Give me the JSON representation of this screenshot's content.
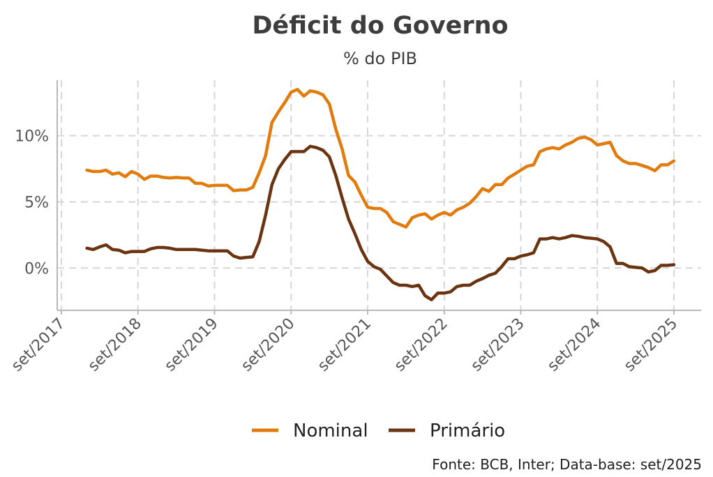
{
  "chart_data": {
    "type": "line",
    "title": "Déficit do Governo",
    "subtitle": "% do PIB",
    "caption": "Fonte: BCB, Inter; Data-base: set/2025",
    "x_ticks": [
      "set/2017",
      "set/2018",
      "set/2019",
      "set/2020",
      "set/2021",
      "set/2022",
      "set/2023",
      "set/2024",
      "set/2025"
    ],
    "y_ticks": [
      "0%",
      "5%",
      "10%"
    ],
    "y_tick_values": [
      0,
      5,
      10
    ],
    "xlim": [
      "2017-09",
      "2025-09"
    ],
    "ylim": [
      -3.2,
      14.2
    ],
    "grid": true,
    "legend_position": "bottom",
    "colors": {
      "Nominal": "#E07B0C",
      "Primário": "#6B3410"
    },
    "series": [
      {
        "name": "Nominal",
        "points": [
          [
            "2018-01",
            7.4
          ],
          [
            "2018-02",
            7.3
          ],
          [
            "2018-03",
            7.3
          ],
          [
            "2018-04",
            7.4
          ],
          [
            "2018-05",
            7.1
          ],
          [
            "2018-06",
            7.2
          ],
          [
            "2018-07",
            6.9
          ],
          [
            "2018-08",
            7.3
          ],
          [
            "2018-09",
            7.1
          ],
          [
            "2018-10",
            6.7
          ],
          [
            "2018-11",
            6.95
          ],
          [
            "2018-12",
            6.95
          ],
          [
            "2019-01",
            6.85
          ],
          [
            "2019-02",
            6.8
          ],
          [
            "2019-03",
            6.85
          ],
          [
            "2019-04",
            6.8
          ],
          [
            "2019-05",
            6.8
          ],
          [
            "2019-06",
            6.4
          ],
          [
            "2019-07",
            6.4
          ],
          [
            "2019-08",
            6.2
          ],
          [
            "2019-09",
            6.25
          ],
          [
            "2019-10",
            6.25
          ],
          [
            "2019-11",
            6.25
          ],
          [
            "2019-12",
            5.85
          ],
          [
            "2020-01",
            5.9
          ],
          [
            "2020-02",
            5.9
          ],
          [
            "2020-03",
            6.1
          ],
          [
            "2020-04",
            7.2
          ],
          [
            "2020-05",
            8.5
          ],
          [
            "2020-06",
            11.0
          ],
          [
            "2020-07",
            11.8
          ],
          [
            "2020-08",
            12.5
          ],
          [
            "2020-09",
            13.3
          ],
          [
            "2020-10",
            13.5
          ],
          [
            "2020-11",
            13.0
          ],
          [
            "2020-12",
            13.4
          ],
          [
            "2021-01",
            13.3
          ],
          [
            "2021-02",
            13.1
          ],
          [
            "2021-03",
            12.4
          ],
          [
            "2021-04",
            10.5
          ],
          [
            "2021-05",
            9.0
          ],
          [
            "2021-06",
            7.0
          ],
          [
            "2021-07",
            6.5
          ],
          [
            "2021-08",
            5.5
          ],
          [
            "2021-09",
            4.6
          ],
          [
            "2021-10",
            4.5
          ],
          [
            "2021-11",
            4.5
          ],
          [
            "2021-12",
            4.2
          ],
          [
            "2022-01",
            3.5
          ],
          [
            "2022-02",
            3.3
          ],
          [
            "2022-03",
            3.1
          ],
          [
            "2022-04",
            3.8
          ],
          [
            "2022-05",
            4.0
          ],
          [
            "2022-06",
            4.1
          ],
          [
            "2022-07",
            3.7
          ],
          [
            "2022-08",
            4.0
          ],
          [
            "2022-09",
            4.2
          ],
          [
            "2022-10",
            4.0
          ],
          [
            "2022-11",
            4.4
          ],
          [
            "2022-12",
            4.6
          ],
          [
            "2023-01",
            4.9
          ],
          [
            "2023-02",
            5.4
          ],
          [
            "2023-03",
            6.0
          ],
          [
            "2023-04",
            5.8
          ],
          [
            "2023-05",
            6.3
          ],
          [
            "2023-06",
            6.3
          ],
          [
            "2023-07",
            6.8
          ],
          [
            "2023-08",
            7.1
          ],
          [
            "2023-09",
            7.4
          ],
          [
            "2023-10",
            7.7
          ],
          [
            "2023-11",
            7.8
          ],
          [
            "2023-12",
            8.8
          ],
          [
            "2024-01",
            9.0
          ],
          [
            "2024-02",
            9.1
          ],
          [
            "2024-03",
            9.0
          ],
          [
            "2024-04",
            9.3
          ],
          [
            "2024-05",
            9.5
          ],
          [
            "2024-06",
            9.8
          ],
          [
            "2024-07",
            9.9
          ],
          [
            "2024-08",
            9.7
          ],
          [
            "2024-09",
            9.3
          ],
          [
            "2024-10",
            9.4
          ],
          [
            "2024-11",
            9.5
          ],
          [
            "2024-12",
            8.5
          ],
          [
            "2025-01",
            8.1
          ],
          [
            "2025-02",
            7.9
          ],
          [
            "2025-03",
            7.9
          ],
          [
            "2025-04",
            7.75
          ],
          [
            "2025-05",
            7.6
          ],
          [
            "2025-06",
            7.35
          ],
          [
            "2025-07",
            7.8
          ],
          [
            "2025-08",
            7.8
          ],
          [
            "2025-09",
            8.1
          ]
        ]
      },
      {
        "name": "Primário",
        "points": [
          [
            "2018-01",
            1.5
          ],
          [
            "2018-02",
            1.4
          ],
          [
            "2018-03",
            1.6
          ],
          [
            "2018-04",
            1.75
          ],
          [
            "2018-05",
            1.4
          ],
          [
            "2018-06",
            1.35
          ],
          [
            "2018-07",
            1.15
          ],
          [
            "2018-08",
            1.25
          ],
          [
            "2018-09",
            1.25
          ],
          [
            "2018-10",
            1.25
          ],
          [
            "2018-11",
            1.45
          ],
          [
            "2018-12",
            1.55
          ],
          [
            "2019-01",
            1.55
          ],
          [
            "2019-02",
            1.5
          ],
          [
            "2019-03",
            1.4
          ],
          [
            "2019-04",
            1.4
          ],
          [
            "2019-05",
            1.4
          ],
          [
            "2019-06",
            1.4
          ],
          [
            "2019-07",
            1.35
          ],
          [
            "2019-08",
            1.3
          ],
          [
            "2019-09",
            1.3
          ],
          [
            "2019-10",
            1.3
          ],
          [
            "2019-11",
            1.3
          ],
          [
            "2019-12",
            0.9
          ],
          [
            "2020-01",
            0.75
          ],
          [
            "2020-02",
            0.8
          ],
          [
            "2020-03",
            0.85
          ],
          [
            "2020-04",
            2.0
          ],
          [
            "2020-05",
            4.0
          ],
          [
            "2020-06",
            6.3
          ],
          [
            "2020-07",
            7.5
          ],
          [
            "2020-08",
            8.2
          ],
          [
            "2020-09",
            8.8
          ],
          [
            "2020-10",
            8.8
          ],
          [
            "2020-11",
            8.8
          ],
          [
            "2020-12",
            9.2
          ],
          [
            "2021-01",
            9.1
          ],
          [
            "2021-02",
            8.9
          ],
          [
            "2021-03",
            8.4
          ],
          [
            "2021-04",
            7.0
          ],
          [
            "2021-05",
            5.3
          ],
          [
            "2021-06",
            3.7
          ],
          [
            "2021-07",
            2.6
          ],
          [
            "2021-08",
            1.4
          ],
          [
            "2021-09",
            0.5
          ],
          [
            "2021-10",
            0.1
          ],
          [
            "2021-11",
            -0.1
          ],
          [
            "2021-12",
            -0.6
          ],
          [
            "2022-01",
            -1.1
          ],
          [
            "2022-02",
            -1.3
          ],
          [
            "2022-03",
            -1.3
          ],
          [
            "2022-04",
            -1.4
          ],
          [
            "2022-05",
            -1.3
          ],
          [
            "2022-06",
            -2.1
          ],
          [
            "2022-07",
            -2.4
          ],
          [
            "2022-08",
            -1.9
          ],
          [
            "2022-09",
            -1.9
          ],
          [
            "2022-10",
            -1.8
          ],
          [
            "2022-11",
            -1.4
          ],
          [
            "2022-12",
            -1.3
          ],
          [
            "2023-01",
            -1.3
          ],
          [
            "2023-02",
            -1.0
          ],
          [
            "2023-03",
            -0.8
          ],
          [
            "2023-04",
            -0.55
          ],
          [
            "2023-05",
            -0.4
          ],
          [
            "2023-06",
            0.1
          ],
          [
            "2023-07",
            0.7
          ],
          [
            "2023-08",
            0.7
          ],
          [
            "2023-09",
            0.9
          ],
          [
            "2023-10",
            1.0
          ],
          [
            "2023-11",
            1.15
          ],
          [
            "2023-12",
            2.2
          ],
          [
            "2024-01",
            2.2
          ],
          [
            "2024-02",
            2.3
          ],
          [
            "2024-03",
            2.2
          ],
          [
            "2024-04",
            2.3
          ],
          [
            "2024-05",
            2.45
          ],
          [
            "2024-06",
            2.4
          ],
          [
            "2024-07",
            2.3
          ],
          [
            "2024-08",
            2.25
          ],
          [
            "2024-09",
            2.2
          ],
          [
            "2024-10",
            2.0
          ],
          [
            "2024-11",
            1.6
          ],
          [
            "2024-12",
            0.35
          ],
          [
            "2025-01",
            0.35
          ],
          [
            "2025-02",
            0.1
          ],
          [
            "2025-03",
            0.05
          ],
          [
            "2025-04",
            0.0
          ],
          [
            "2025-05",
            -0.3
          ],
          [
            "2025-06",
            -0.2
          ],
          [
            "2025-07",
            0.2
          ],
          [
            "2025-08",
            0.2
          ],
          [
            "2025-09",
            0.25
          ]
        ]
      }
    ]
  }
}
